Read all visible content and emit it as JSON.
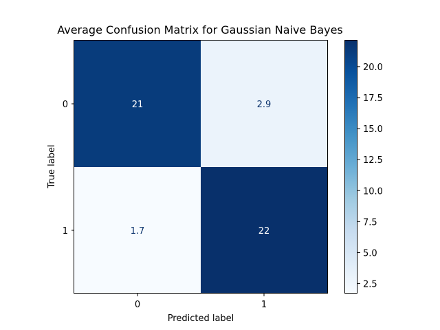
{
  "chart_data": {
    "type": "heatmap",
    "title": "Average Confusion Matrix for Gaussian Naive Bayes",
    "xlabel": "Predicted label",
    "ylabel": "True label",
    "x_categories": [
      "0",
      "1"
    ],
    "y_categories": [
      "0",
      "1"
    ],
    "values": [
      [
        21.2,
        2.9
      ],
      [
        1.7,
        22.1
      ]
    ],
    "value_labels": [
      [
        "21",
        "2.9"
      ],
      [
        "1.7",
        "22"
      ]
    ],
    "colormap": "Blues",
    "colorbar": {
      "min": 1.7,
      "max": 22.1,
      "ticks": [
        2.5,
        5.0,
        7.5,
        10.0,
        12.5,
        15.0,
        17.5,
        20.0
      ],
      "tick_labels": [
        "2.5",
        "5.0",
        "7.5",
        "10.0",
        "12.5",
        "15.0",
        "17.5",
        "20.0"
      ]
    },
    "text_color_dark": "#08306b",
    "text_color_light": "#ffffff",
    "grid": false
  }
}
